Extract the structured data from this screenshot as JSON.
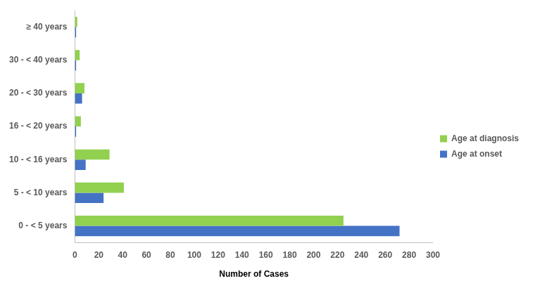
{
  "chart_data": {
    "type": "bar",
    "orientation": "horizontal",
    "x_label": "Number of Cases",
    "categories": [
      "≥ 40 years",
      "30 - < 40 years",
      "20 - < 30 years",
      "16 - < 20 years",
      "10 - < 16 years",
      "5 - < 10 years",
      "0 - < 5 years"
    ],
    "series": [
      {
        "name": "Age at diagnosis",
        "color": "#92d050",
        "values": [
          2,
          4,
          8,
          5,
          29,
          41,
          225
        ]
      },
      {
        "name": "Age at onset",
        "color": "#4472c4",
        "values": [
          1,
          1,
          6,
          1,
          9,
          24,
          272
        ]
      }
    ],
    "xlim": [
      0,
      300
    ],
    "xticks": [
      0,
      20,
      40,
      60,
      80,
      100,
      120,
      140,
      160,
      180,
      200,
      220,
      240,
      260,
      280,
      300
    ],
    "grid": false,
    "legend": "right"
  }
}
